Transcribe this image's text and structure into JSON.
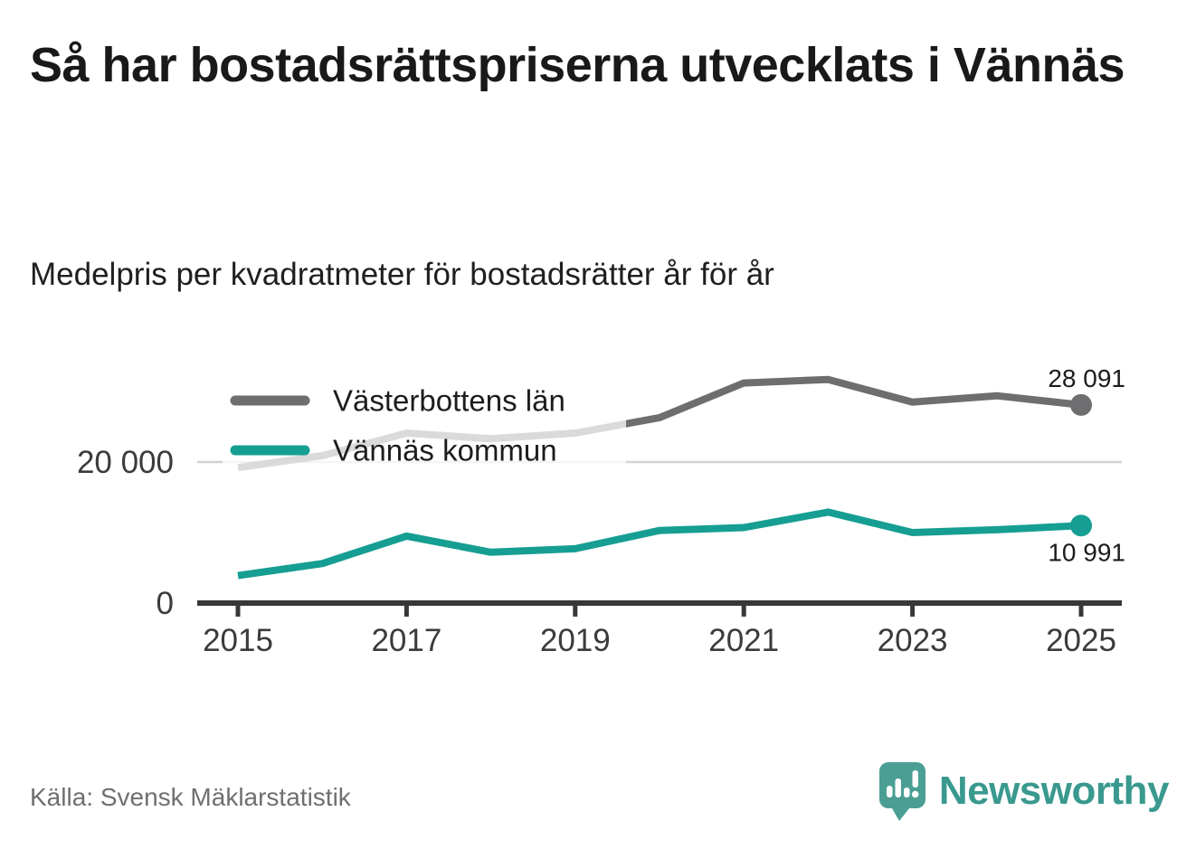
{
  "header": {
    "title": "Så har bostadsrättspriserna utvecklats i Vännäs",
    "subtitle": "Medelpris per kvadratmeter för bostadsrätter år för år"
  },
  "chart_data": {
    "type": "line",
    "title": "Medelpris per kvadratmeter för bostadsrätter år för år",
    "x": [
      2015,
      2016,
      2017,
      2018,
      2019,
      2020,
      2021,
      2022,
      2023,
      2024,
      2025
    ],
    "x_tick_labels": [
      "2015",
      "2017",
      "2019",
      "2021",
      "2023",
      "2025"
    ],
    "y_ticks": [
      {
        "value": 0,
        "label": "0"
      },
      {
        "value": 20000,
        "label": "20 000"
      }
    ],
    "ylim": [
      0,
      35000
    ],
    "grid": "single horizontal gridline at 20000",
    "legend_position": "top-left-inside",
    "series": [
      {
        "name": "Västerbottens län",
        "color": "#6e6e70",
        "values": [
          19200,
          20900,
          24100,
          23300,
          24100,
          26300,
          31200,
          31700,
          28500,
          29400,
          28091
        ],
        "end_label": "28 091"
      },
      {
        "name": "Vännäs kommun",
        "color": "#169e93",
        "values": [
          3900,
          5600,
          9500,
          7200,
          7700,
          10300,
          10700,
          12900,
          10000,
          10400,
          10991
        ],
        "end_label": "10 991"
      }
    ]
  },
  "footer": {
    "source": "Källa: Svensk Mäklarstatistik",
    "brand": "Newsworthy"
  }
}
